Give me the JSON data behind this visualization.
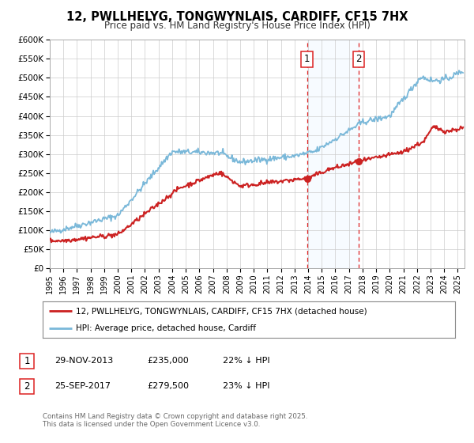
{
  "title": "12, PWLLHELYG, TONGWYNLAIS, CARDIFF, CF15 7HX",
  "subtitle": "Price paid vs. HM Land Registry's House Price Index (HPI)",
  "background_color": "#ffffff",
  "plot_bg_color": "#ffffff",
  "grid_color": "#cccccc",
  "hpi_color": "#7ab8d9",
  "price_color": "#cc2222",
  "ylim": [
    0,
    600000
  ],
  "yticks": [
    0,
    50000,
    100000,
    150000,
    200000,
    250000,
    300000,
    350000,
    400000,
    450000,
    500000,
    550000,
    600000
  ],
  "ytick_labels": [
    "£0",
    "£50K",
    "£100K",
    "£150K",
    "£200K",
    "£250K",
    "£300K",
    "£350K",
    "£400K",
    "£450K",
    "£500K",
    "£550K",
    "£600K"
  ],
  "xlim_start": 1995.0,
  "xlim_end": 2025.5,
  "marker1_x": 2013.91,
  "marker1_y": 235000,
  "marker2_x": 2017.73,
  "marker2_y": 279500,
  "marker1_label": "1",
  "marker2_label": "2",
  "legend_line1": "12, PWLLHELYG, TONGWYNLAIS, CARDIFF, CF15 7HX (detached house)",
  "legend_line2": "HPI: Average price, detached house, Cardiff",
  "table_row1": [
    "1",
    "29-NOV-2013",
    "£235,000",
    "22% ↓ HPI"
  ],
  "table_row2": [
    "2",
    "25-SEP-2017",
    "£279,500",
    "23% ↓ HPI"
  ],
  "footnote": "Contains HM Land Registry data © Crown copyright and database right 2025.\nThis data is licensed under the Open Government Licence v3.0.",
  "shade_color": "#ddeeff",
  "vline_color": "#dd2222"
}
